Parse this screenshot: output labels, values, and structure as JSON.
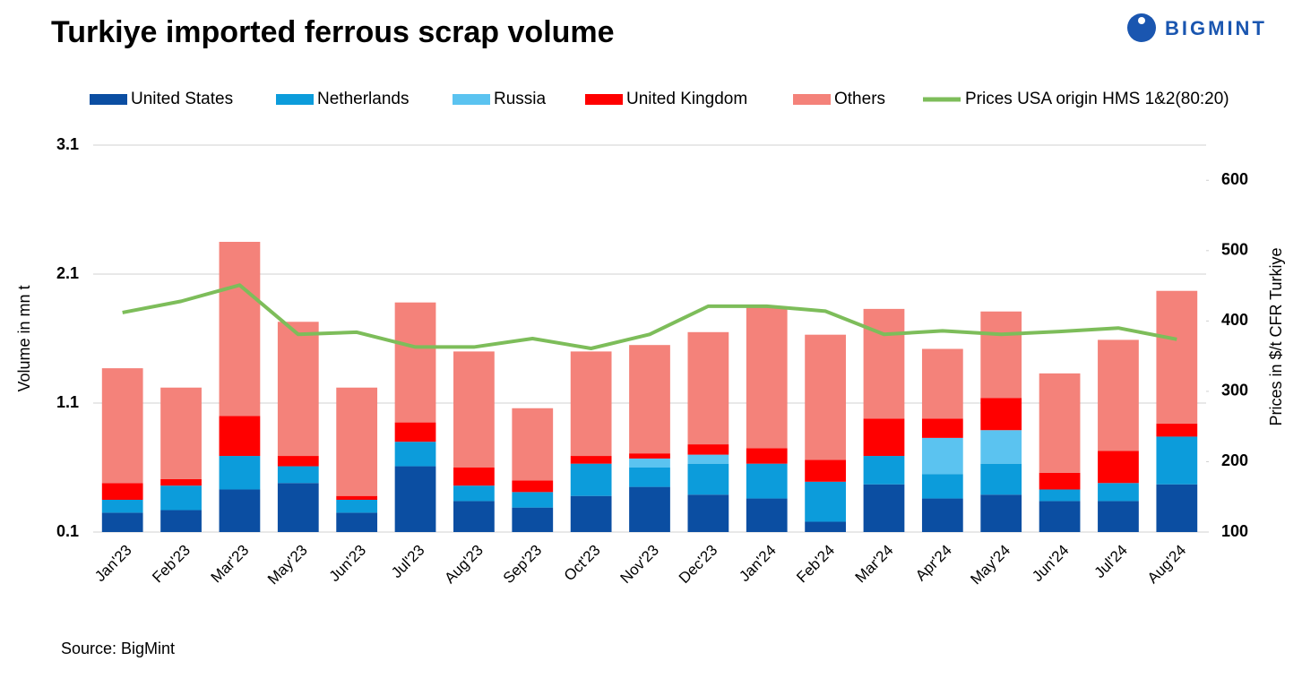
{
  "logo": "BIGMINT",
  "chart_data": {
    "type": "bar",
    "stacked": true,
    "title": "Turkiye imported ferrous scrap volume",
    "ylabel": "Volume in mn t",
    "y2label": "Prices in $/t CFR Turkiye",
    "source": "Source: BigMint",
    "categories": [
      "Jan'23",
      "Feb'23",
      "Mar'23",
      "May'23",
      "Jun'23",
      "Jul'23",
      "Aug'23",
      "Sep'23",
      "Oct'23",
      "Nov'23",
      "Dec'23",
      "Jan'24",
      "Feb'24",
      "Mar'24",
      "Apr'24",
      "May'24",
      "Jun'24",
      "Jul'24",
      "Aug'24"
    ],
    "ylim": [
      0.1,
      3.1
    ],
    "yticks": [
      0.1,
      1.1,
      2.1,
      3.1
    ],
    "y2lim": [
      100,
      650
    ],
    "y2ticks": [
      100,
      200,
      300,
      400,
      500,
      600
    ],
    "grid": true,
    "legend": "top",
    "series": [
      {
        "name": "United States",
        "type": "bar",
        "color": "#0b4ea2",
        "values": [
          0.15,
          0.17,
          0.33,
          0.38,
          0.15,
          0.51,
          0.24,
          0.19,
          0.28,
          0.35,
          0.29,
          0.26,
          0.08,
          0.37,
          0.26,
          0.29,
          0.24,
          0.24,
          0.37
        ]
      },
      {
        "name": "Netherlands",
        "type": "bar",
        "color": "#0c9cdb",
        "values": [
          0.1,
          0.19,
          0.26,
          0.13,
          0.1,
          0.19,
          0.12,
          0.12,
          0.25,
          0.15,
          0.24,
          0.27,
          0.31,
          0.22,
          0.19,
          0.24,
          0.09,
          0.14,
          0.37
        ]
      },
      {
        "name": "Russia",
        "type": "bar",
        "color": "#5bc3f0",
        "values": [
          0,
          0,
          0,
          0,
          0,
          0,
          0,
          0,
          0,
          0.07,
          0.07,
          0,
          0,
          0,
          0.28,
          0.26,
          0,
          0,
          0
        ]
      },
      {
        "name": "United Kingdom",
        "type": "bar",
        "color": "#ff0000",
        "values": [
          0.13,
          0.05,
          0.31,
          0.08,
          0.03,
          0.15,
          0.14,
          0.09,
          0.06,
          0.04,
          0.08,
          0.12,
          0.17,
          0.29,
          0.15,
          0.25,
          0.13,
          0.25,
          0.1
        ]
      },
      {
        "name": "Others",
        "type": "bar",
        "color": "#f4827a",
        "values": [
          0.89,
          0.71,
          1.35,
          1.04,
          0.84,
          0.93,
          0.9,
          0.56,
          0.81,
          0.84,
          0.87,
          1.1,
          0.97,
          0.85,
          0.54,
          0.67,
          0.77,
          0.86,
          1.03
        ]
      },
      {
        "name": "Prices USA origin HMS 1&2(80:20)",
        "type": "line",
        "axis": "y2",
        "color": "#7dbd5a",
        "values": [
          412,
          428,
          451,
          381,
          384,
          363,
          363,
          375,
          361,
          381,
          421,
          421,
          414,
          381,
          386,
          381,
          385,
          390,
          374
        ]
      }
    ]
  }
}
